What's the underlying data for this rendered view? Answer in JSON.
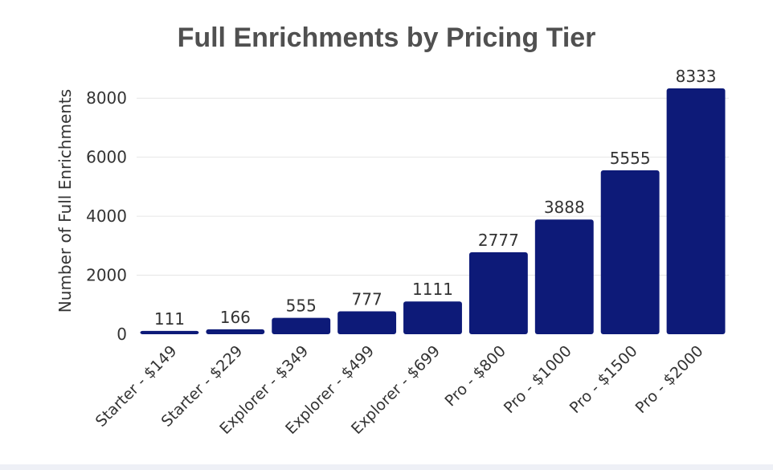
{
  "chart_data": {
    "type": "bar",
    "title": "Full Enrichments by Pricing Tier",
    "xlabel": "",
    "ylabel": "Number of Full Enrichments",
    "categories": [
      "Starter - $149",
      "Starter - $229",
      "Explorer - $349",
      "Explorer - $499",
      "Explorer - $699",
      "Pro - $800",
      "Pro - $1000",
      "Pro - $1500",
      "Pro - $2000"
    ],
    "values": [
      111,
      166,
      555,
      777,
      1111,
      2777,
      3888,
      5555,
      8333
    ],
    "ylim": [
      0,
      8333
    ],
    "yticks": [
      0,
      2000,
      4000,
      6000,
      8000
    ],
    "grid": true,
    "bar_color": "#0d1a78",
    "title_color": "#505050"
  }
}
